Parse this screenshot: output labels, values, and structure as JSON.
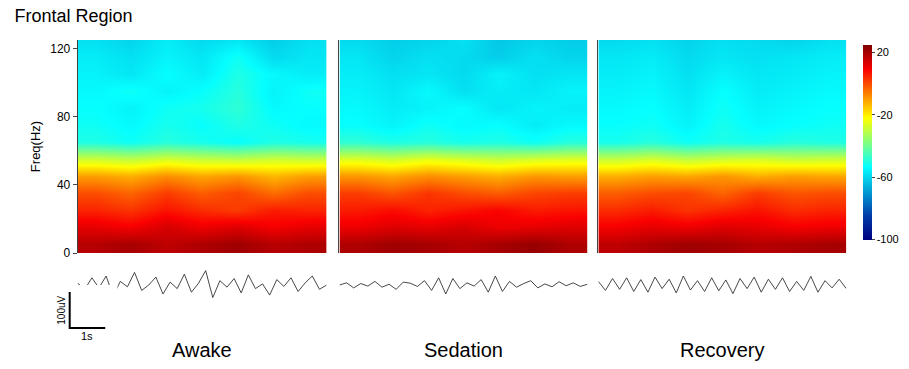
{
  "chart_data": {
    "type": "heatmap",
    "title": "Frontal Region",
    "y_label": "Freq(Hz)",
    "ylim": [
      0,
      125
    ],
    "yticks": [
      0,
      40,
      80,
      120
    ],
    "xlim": [
      0,
      7
    ],
    "tick_labels": "y",
    "zlim": [
      -100,
      25
    ],
    "zticks": [
      20,
      -20,
      -60,
      -100
    ],
    "x": [
      0.5,
      1.5,
      2.5,
      3.5,
      4.5,
      5.5,
      6.5
    ],
    "y": [
      5,
      15,
      25,
      35,
      45,
      55,
      65,
      75,
      85,
      95,
      105,
      115,
      125
    ],
    "trace_x": [
      0,
      0.2,
      0.4,
      0.6,
      0.8,
      1,
      1.2,
      1.4,
      1.6,
      1.8,
      2,
      2.2,
      2.4,
      2.6,
      2.8,
      3,
      3.2,
      3.4,
      3.6,
      3.8,
      4,
      4.2,
      4.4,
      4.6,
      4.8,
      5,
      5.2,
      5.4,
      5.6,
      5.8,
      6,
      6.2,
      6.4,
      6.6,
      6.8,
      7
    ],
    "trace_ylim": [
      -75,
      75
    ],
    "scale_bar": {
      "time": {
        "value": 1,
        "label": "1s"
      },
      "amplitude": {
        "value": 100,
        "label": "100uV"
      }
    },
    "panels": [
      {
        "name": "Awake",
        "cells": [
          [
            18,
            20,
            17,
            19,
            21,
            18,
            19
          ],
          [
            12,
            10,
            14,
            11,
            13,
            10,
            12
          ],
          [
            5,
            3,
            7,
            4,
            2,
            6,
            5
          ],
          [
            0,
            -3,
            2,
            -2,
            1,
            -4,
            0
          ],
          [
            -10,
            -12,
            -8,
            -11,
            -9,
            -13,
            -10
          ],
          [
            -28,
            -30,
            -27,
            -29,
            -30,
            -28,
            -29
          ],
          [
            -50,
            -52,
            -49,
            -51,
            -53,
            -50,
            -51
          ],
          [
            -52,
            -54,
            -51,
            -53,
            -50,
            -52,
            -54
          ],
          [
            -53,
            -55,
            -52,
            -51,
            -48,
            -54,
            -53
          ],
          [
            -54,
            -52,
            -55,
            -53,
            -49,
            -55,
            -52
          ],
          [
            -55,
            -57,
            -53,
            -56,
            -50,
            -54,
            -56
          ],
          [
            -56,
            -58,
            -55,
            -57,
            -52,
            -59,
            -57
          ],
          [
            -58,
            -60,
            -56,
            -59,
            -57,
            -61,
            -58
          ]
        ],
        "trace": [
          5,
          -12,
          20,
          -8,
          25,
          -30,
          10,
          -5,
          35,
          -15,
          0,
          22,
          -25,
          8,
          -10,
          30,
          -20,
          5,
          40,
          -35,
          12,
          -6,
          18,
          -22,
          28,
          -10,
          3,
          -28,
          15,
          -4,
          20,
          -18,
          6,
          25,
          -12,
          0
        ]
      },
      {
        "name": "Sedation",
        "cells": [
          [
            19,
            21,
            20,
            18,
            20,
            22,
            19
          ],
          [
            11,
            13,
            12,
            14,
            11,
            12,
            13
          ],
          [
            6,
            8,
            5,
            7,
            9,
            6,
            7
          ],
          [
            2,
            -1,
            3,
            0,
            -2,
            1,
            2
          ],
          [
            -9,
            -11,
            -8,
            -10,
            -12,
            -9,
            -10
          ],
          [
            -26,
            -28,
            -25,
            -27,
            -29,
            -27,
            -26
          ],
          [
            -48,
            -50,
            -49,
            -51,
            -50,
            -52,
            -49
          ],
          [
            -53,
            -55,
            -52,
            -54,
            -53,
            -56,
            -54
          ],
          [
            -54,
            -56,
            -55,
            -53,
            -57,
            -55,
            -56
          ],
          [
            -55,
            -57,
            -54,
            -58,
            -56,
            -57,
            -55
          ],
          [
            -56,
            -58,
            -57,
            -59,
            -55,
            -58,
            -57
          ],
          [
            -57,
            -60,
            -58,
            -59,
            -61,
            -58,
            -60
          ],
          [
            -59,
            -61,
            -60,
            -58,
            -62,
            -60,
            -61
          ]
        ],
        "trace": [
          0,
          6,
          -8,
          4,
          -3,
          10,
          -6,
          2,
          -12,
          8,
          5,
          -4,
          12,
          -15,
          20,
          -25,
          18,
          -10,
          6,
          -3,
          15,
          -20,
          25,
          -18,
          10,
          -6,
          4,
          12,
          -8,
          3,
          -5,
          9,
          -2,
          6,
          -4,
          2
        ]
      },
      {
        "name": "Recovery",
        "cells": [
          [
            17,
            19,
            21,
            20,
            18,
            19,
            20
          ],
          [
            10,
            12,
            11,
            13,
            12,
            10,
            11
          ],
          [
            4,
            6,
            3,
            5,
            7,
            4,
            5
          ],
          [
            -2,
            0,
            1,
            -3,
            2,
            -1,
            0
          ],
          [
            -12,
            -10,
            -11,
            -9,
            -12,
            -10,
            -11
          ],
          [
            -29,
            -27,
            -30,
            -28,
            -27,
            -29,
            -28
          ],
          [
            -51,
            -49,
            -52,
            -50,
            -51,
            -49,
            -50
          ],
          [
            -53,
            -52,
            -55,
            -51,
            -54,
            -53,
            -52
          ],
          [
            -54,
            -53,
            -56,
            -52,
            -55,
            -54,
            -53
          ],
          [
            -55,
            -54,
            -57,
            -53,
            -56,
            -55,
            -54
          ],
          [
            -56,
            -55,
            -58,
            -55,
            -57,
            -56,
            -55
          ],
          [
            -57,
            -56,
            -59,
            -57,
            -58,
            -57,
            -56
          ],
          [
            -59,
            -58,
            -60,
            -58,
            -59,
            -60,
            -58
          ]
        ],
        "trace": [
          10,
          -15,
          18,
          -12,
          20,
          -18,
          15,
          -20,
          22,
          -10,
          16,
          -22,
          25,
          -14,
          12,
          -18,
          20,
          -16,
          14,
          -24,
          18,
          -10,
          22,
          -20,
          16,
          -12,
          20,
          -18,
          10,
          -15,
          24,
          -20,
          12,
          -8,
          16,
          -10
        ]
      }
    ]
  }
}
